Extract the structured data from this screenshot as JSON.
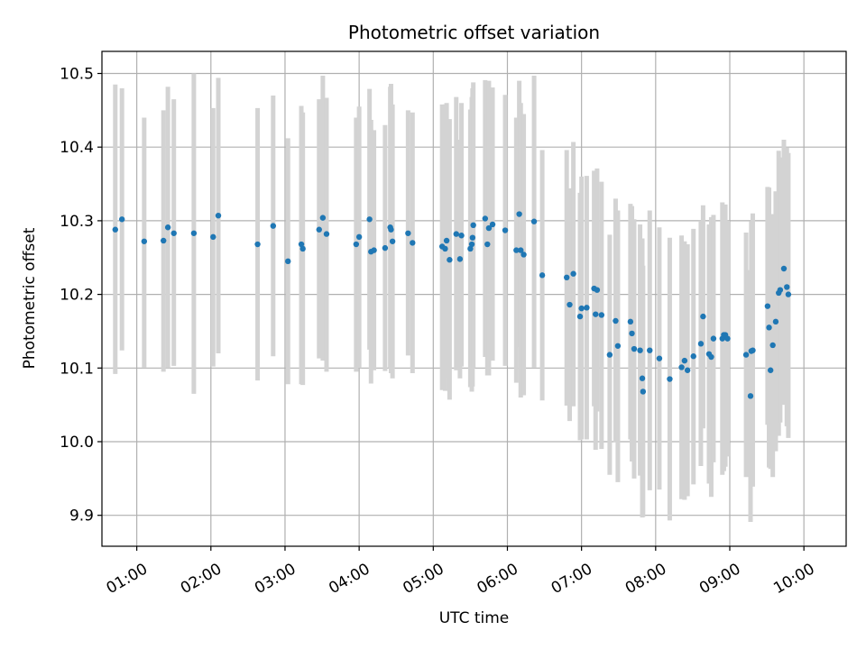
{
  "chart_data": {
    "type": "scatter",
    "title": "Photometric offset variation",
    "xlabel": "UTC time",
    "ylabel": "Photometric offset",
    "x_unit": "hours UTC",
    "xlim": [
      0.53,
      10.57
    ],
    "ylim": [
      9.858,
      10.53
    ],
    "x_ticks": [
      {
        "value": 1,
        "label": "01:00"
      },
      {
        "value": 2,
        "label": "02:00"
      },
      {
        "value": 3,
        "label": "03:00"
      },
      {
        "value": 4,
        "label": "04:00"
      },
      {
        "value": 5,
        "label": "05:00"
      },
      {
        "value": 6,
        "label": "06:00"
      },
      {
        "value": 7,
        "label": "07:00"
      },
      {
        "value": 8,
        "label": "08:00"
      },
      {
        "value": 9,
        "label": "09:00"
      },
      {
        "value": 10,
        "label": "10:00"
      }
    ],
    "y_ticks": [
      {
        "value": 9.9,
        "label": "9.9"
      },
      {
        "value": 10.0,
        "label": "10.0"
      },
      {
        "value": 10.1,
        "label": "10.1"
      },
      {
        "value": 10.2,
        "label": "10.2"
      },
      {
        "value": 10.3,
        "label": "10.3"
      },
      {
        "value": 10.4,
        "label": "10.4"
      },
      {
        "value": 10.5,
        "label": "10.5"
      }
    ],
    "grid": true,
    "marker_color": "#1f77b4",
    "errorbar_color": "#d3d3d3",
    "points": [
      [
        0.71,
        10.288,
        10.092,
        10.485
      ],
      [
        0.8,
        10.302,
        10.124,
        10.48
      ],
      [
        1.1,
        10.272,
        10.101,
        10.44
      ],
      [
        1.36,
        10.273,
        10.095,
        10.45
      ],
      [
        1.42,
        10.291,
        10.1,
        10.482
      ],
      [
        1.5,
        10.283,
        10.103,
        10.465
      ],
      [
        1.77,
        10.283,
        10.065,
        10.5
      ],
      [
        2.03,
        10.278,
        10.102,
        10.453
      ],
      [
        2.1,
        10.307,
        10.12,
        10.494
      ],
      [
        2.63,
        10.268,
        10.083,
        10.453
      ],
      [
        2.84,
        10.293,
        10.116,
        10.47
      ],
      [
        3.04,
        10.245,
        10.078,
        10.412
      ],
      [
        3.22,
        10.268,
        10.078,
        10.456
      ],
      [
        3.24,
        10.262,
        10.077,
        10.447
      ],
      [
        3.46,
        10.288,
        10.113,
        10.465
      ],
      [
        3.51,
        10.304,
        10.11,
        10.497
      ],
      [
        3.56,
        10.282,
        10.095,
        10.467
      ],
      [
        3.96,
        10.268,
        10.095,
        10.44
      ],
      [
        4.0,
        10.278,
        10.1,
        10.455
      ],
      [
        4.14,
        10.302,
        10.125,
        10.479
      ],
      [
        4.16,
        10.258,
        10.079,
        10.437
      ],
      [
        4.2,
        10.26,
        10.097,
        10.423
      ],
      [
        4.35,
        10.263,
        10.096,
        10.43
      ],
      [
        4.42,
        10.291,
        10.1,
        10.482
      ],
      [
        4.43,
        10.288,
        10.093,
        10.486
      ],
      [
        4.45,
        10.272,
        10.086,
        10.458
      ],
      [
        4.66,
        10.283,
        10.117,
        10.45
      ],
      [
        4.72,
        10.27,
        10.093,
        10.447
      ],
      [
        5.12,
        10.265,
        10.07,
        10.458
      ],
      [
        5.16,
        10.262,
        10.069,
        10.458
      ],
      [
        5.18,
        10.273,
        10.087,
        10.46
      ],
      [
        5.22,
        10.247,
        10.057,
        10.438
      ],
      [
        5.31,
        10.282,
        10.097,
        10.468
      ],
      [
        5.36,
        10.248,
        10.086,
        10.41
      ],
      [
        5.38,
        10.28,
        10.102,
        10.46
      ],
      [
        5.5,
        10.262,
        10.074,
        10.451
      ],
      [
        5.52,
        10.268,
        10.068,
        10.468
      ],
      [
        5.53,
        10.277,
        10.075,
        10.48
      ],
      [
        5.54,
        10.294,
        10.1,
        10.488
      ],
      [
        5.7,
        10.303,
        10.115,
        10.491
      ],
      [
        5.73,
        10.268,
        10.09,
        10.445
      ],
      [
        5.75,
        10.29,
        10.09,
        10.49
      ],
      [
        5.8,
        10.295,
        10.11,
        10.481
      ],
      [
        5.97,
        10.287,
        10.103,
        10.471
      ],
      [
        6.12,
        10.26,
        10.08,
        10.44
      ],
      [
        6.16,
        10.309,
        10.128,
        10.49
      ],
      [
        6.18,
        10.26,
        10.06,
        10.46
      ],
      [
        6.22,
        10.254,
        10.063,
        10.445
      ],
      [
        6.36,
        10.299,
        10.101,
        10.497
      ],
      [
        6.47,
        10.226,
        10.056,
        10.396
      ],
      [
        6.8,
        10.223,
        10.049,
        10.396
      ],
      [
        6.84,
        10.186,
        10.028,
        10.344
      ],
      [
        6.89,
        10.228,
        10.048,
        10.407
      ],
      [
        6.98,
        10.17,
        10.002,
        10.338
      ],
      [
        7.0,
        10.181,
        10.003,
        10.36
      ],
      [
        7.07,
        10.182,
        10.003,
        10.361
      ],
      [
        7.17,
        10.208,
        10.048,
        10.368
      ],
      [
        7.19,
        10.173,
        9.989,
        10.356
      ],
      [
        7.21,
        10.206,
        10.041,
        10.371
      ],
      [
        7.27,
        10.172,
        9.99,
        10.353
      ],
      [
        7.38,
        10.118,
        9.955,
        10.281
      ],
      [
        7.46,
        10.164,
        9.999,
        10.33
      ],
      [
        7.49,
        10.13,
        9.945,
        10.314
      ],
      [
        7.66,
        10.163,
        10.003,
        10.323
      ],
      [
        7.68,
        10.147,
        9.973,
        10.32
      ],
      [
        7.71,
        10.126,
        9.95,
        10.302
      ],
      [
        7.79,
        10.124,
        9.954,
        10.295
      ],
      [
        7.82,
        10.086,
        9.897,
        10.276
      ],
      [
        7.83,
        10.068,
        9.898,
        10.239
      ],
      [
        7.92,
        10.124,
        9.934,
        10.314
      ],
      [
        8.05,
        10.113,
        9.935,
        10.291
      ],
      [
        8.19,
        10.085,
        9.893,
        10.277
      ],
      [
        8.35,
        10.101,
        9.922,
        10.28
      ],
      [
        8.39,
        10.11,
        9.921,
        10.272
      ],
      [
        8.43,
        10.097,
        9.926,
        10.268
      ],
      [
        8.51,
        10.116,
        9.942,
        10.289
      ],
      [
        8.61,
        10.133,
        9.967,
        10.3
      ],
      [
        8.64,
        10.17,
        10.018,
        10.321
      ],
      [
        8.72,
        10.119,
        9.943,
        10.295
      ],
      [
        8.75,
        10.115,
        9.925,
        10.305
      ],
      [
        8.78,
        10.14,
        9.972,
        10.308
      ],
      [
        8.9,
        10.14,
        9.955,
        10.325
      ],
      [
        8.92,
        10.145,
        9.96,
        10.321
      ],
      [
        8.94,
        10.145,
        9.966,
        10.322
      ],
      [
        8.97,
        10.14,
        9.98,
        10.3
      ],
      [
        9.22,
        10.118,
        9.952,
        10.284
      ],
      [
        9.28,
        10.062,
        9.891,
        10.233
      ],
      [
        9.29,
        10.123,
        9.947,
        10.299
      ],
      [
        9.31,
        10.124,
        9.939,
        10.31
      ],
      [
        9.51,
        10.184,
        10.023,
        10.346
      ],
      [
        9.53,
        10.155,
        9.965,
        10.345
      ],
      [
        9.55,
        10.097,
        9.963,
        10.23
      ],
      [
        9.58,
        10.131,
        9.952,
        10.309
      ],
      [
        9.62,
        10.163,
        9.987,
        10.34
      ],
      [
        9.66,
        10.202,
        10.008,
        10.395
      ],
      [
        9.68,
        10.206,
        10.026,
        10.386
      ],
      [
        9.73,
        10.235,
        10.05,
        10.41
      ],
      [
        9.77,
        10.21,
        10.021,
        10.399
      ],
      [
        9.79,
        10.2,
        10.005,
        10.392
      ]
    ]
  }
}
